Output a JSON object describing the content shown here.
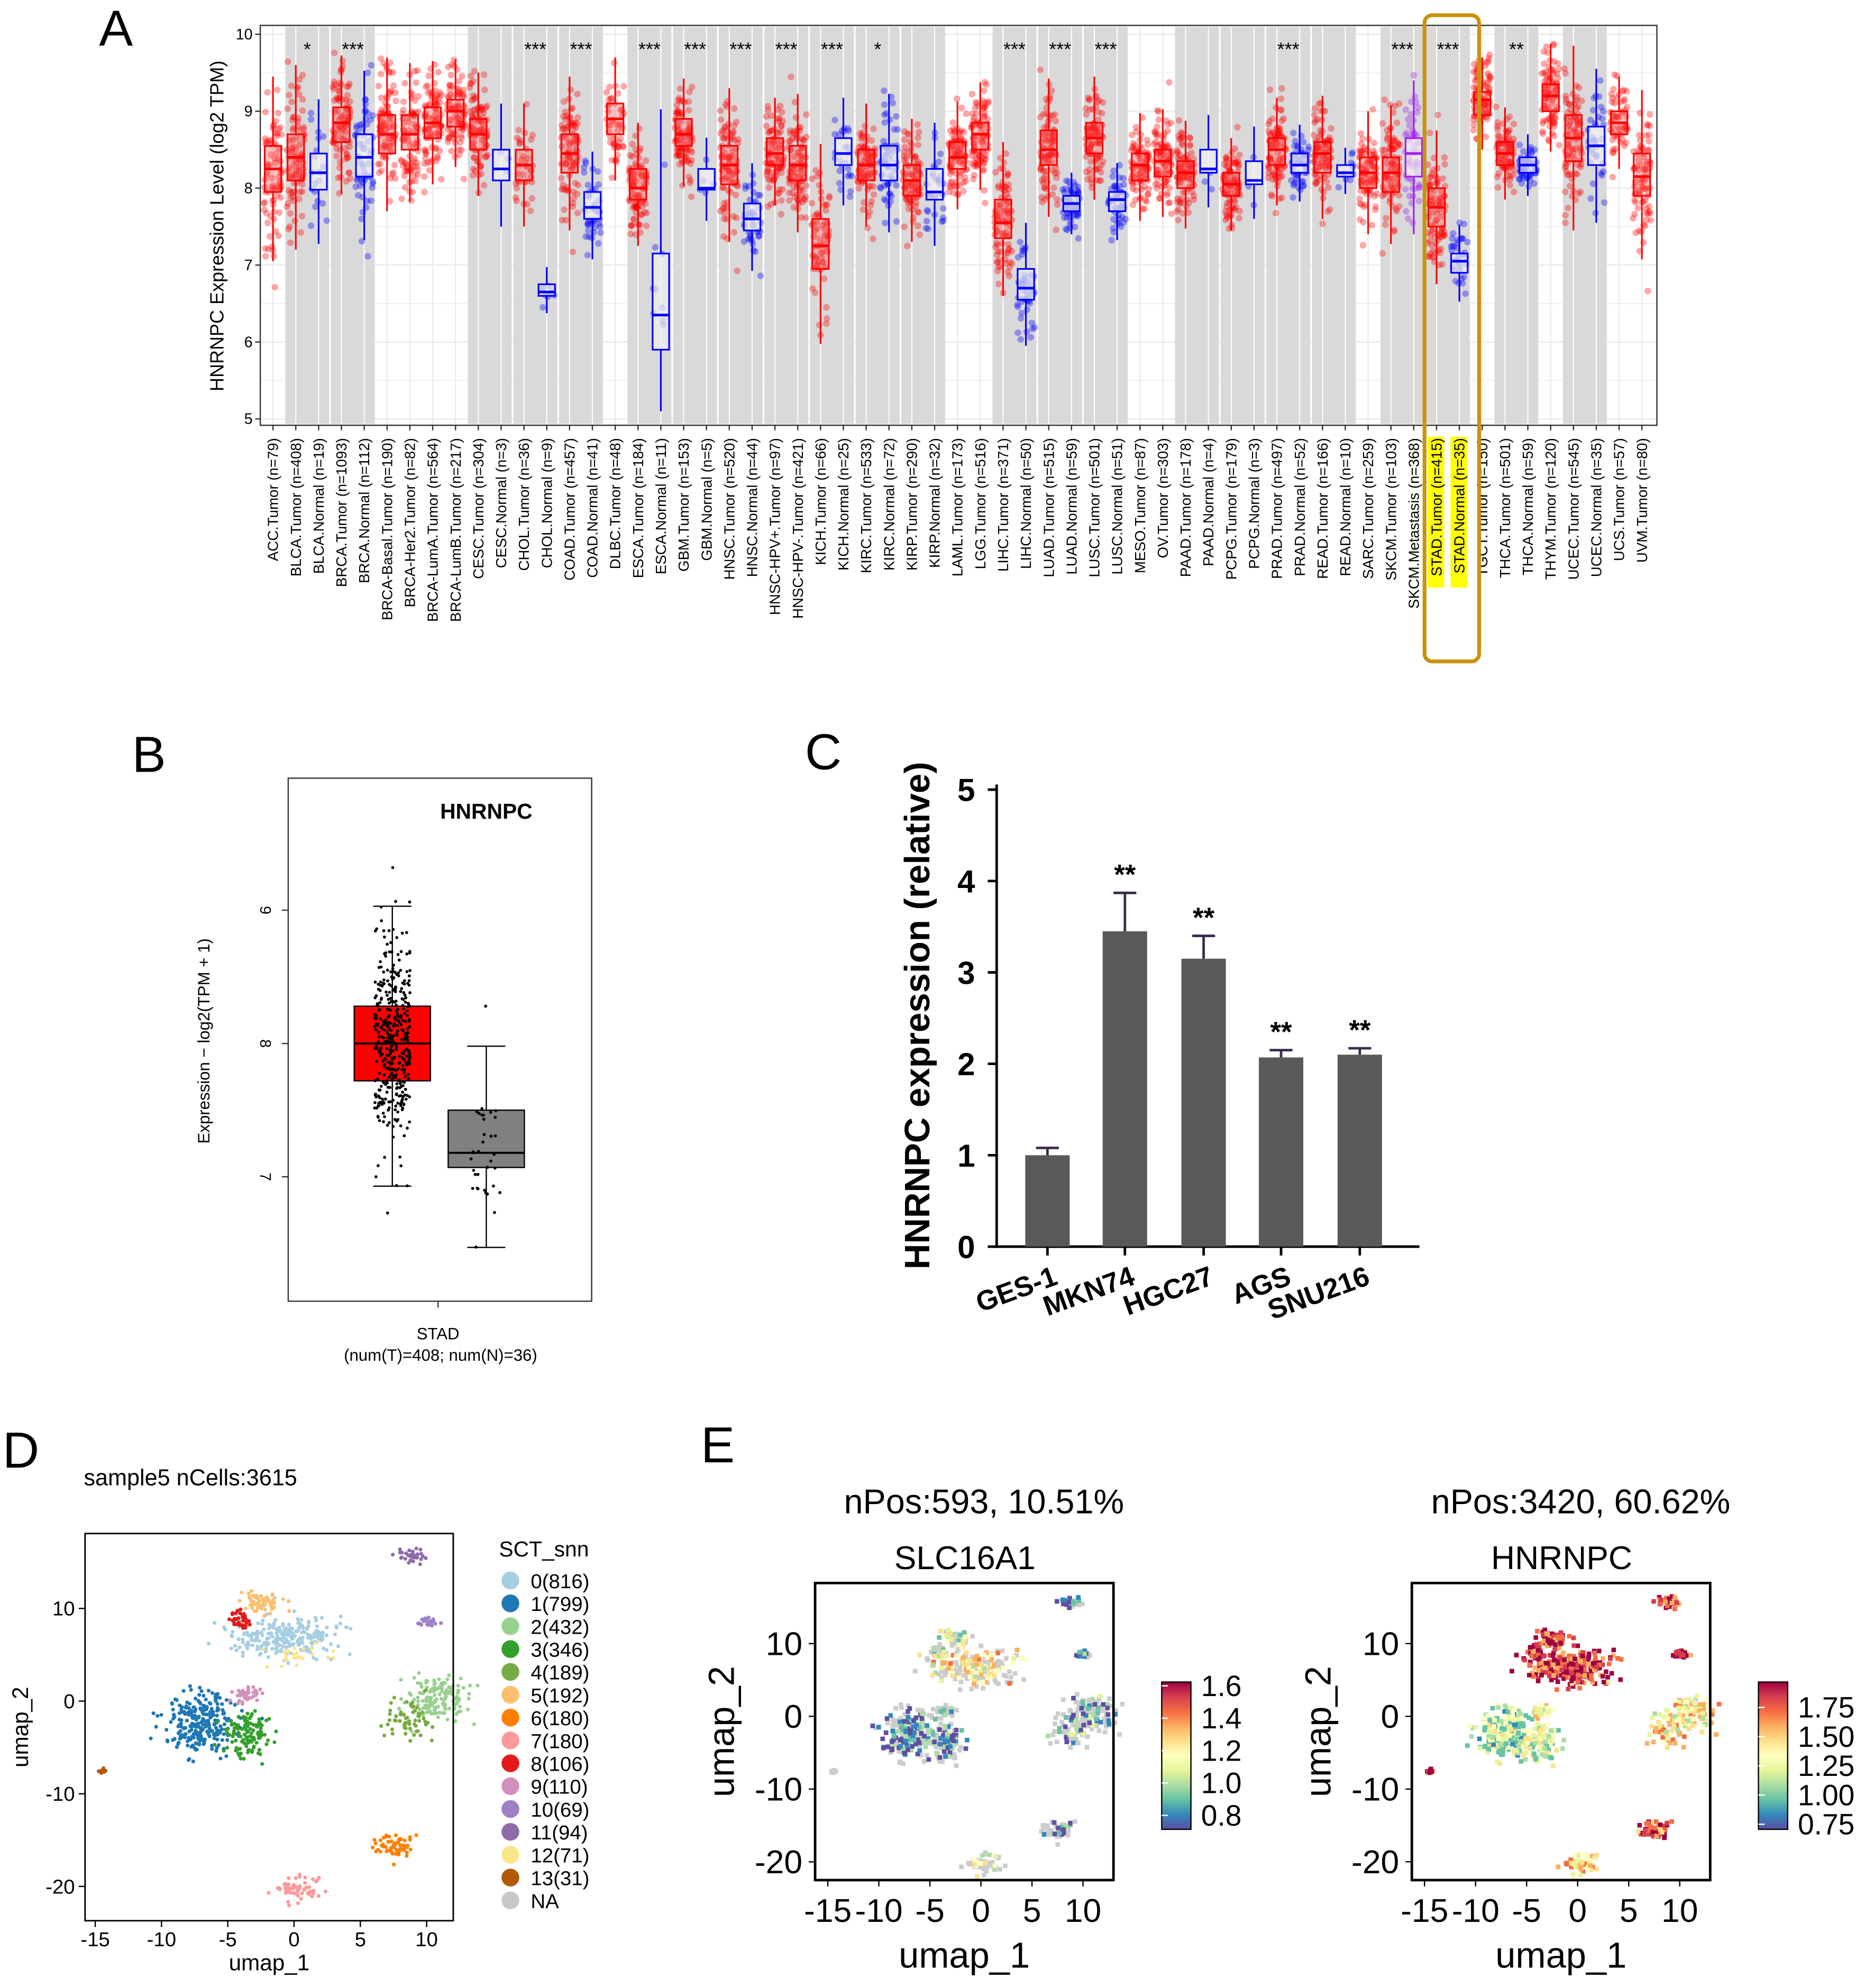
{
  "panel_letters": [
    "A",
    "B",
    "C",
    "D",
    "E"
  ],
  "colors": {
    "tumor": "#ff0000",
    "normal": "#0000ff",
    "metastasis": "#a020f0",
    "band": "#d9d9d9",
    "highlight_box": "#c8930a",
    "highlight_label": "#ffff00",
    "bar": "#595959",
    "error": "#3d2b4f"
  },
  "chart_data": [
    {
      "type": "box",
      "ylabel": "HNRNPC Expression Level (log2 TPM)",
      "ylim": [
        5,
        10
      ],
      "yticks": [
        "5",
        "6",
        "7",
        "8",
        "9",
        "10"
      ],
      "labels": [
        "ACC.Tumor (n=79)",
        "BLCA.Tumor (n=408)",
        "BLCA.Normal (n=19)",
        "BRCA.Tumor (n=1093)",
        "BRCA.Normal (n=112)",
        "BRCA-Basal.Tumor (n=190)",
        "BRCA-Her2.Tumor (n=82)",
        "BRCA-LumA.Tumor (n=564)",
        "BRCA-LumB.Tumor (n=217)",
        "CESC.Tumor (n=304)",
        "CESC.Normal (n=3)",
        "CHOL.Tumor (n=36)",
        "CHOL.Normal (n=9)",
        "COAD.Tumor (n=457)",
        "COAD.Normal (n=41)",
        "DLBC.Tumor (n=48)",
        "ESCA.Tumor (n=184)",
        "ESCA.Normal (n=11)",
        "GBM.Tumor (n=153)",
        "GBM.Normal (n=5)",
        "HNSC.Tumor (n=520)",
        "HNSC.Normal (n=44)",
        "HNSC-HPV+.Tumor (n=97)",
        "HNSC-HPV-.Tumor (n=421)",
        "KICH.Tumor (n=66)",
        "KICH.Normal (n=25)",
        "KIRC.Tumor (n=533)",
        "KIRC.Normal (n=72)",
        "KIRP.Tumor (n=290)",
        "KIRP.Normal (n=32)",
        "LAML.Tumor (n=173)",
        "LGG.Tumor (n=516)",
        "LIHC.Tumor (n=371)",
        "LIHC.Normal (n=50)",
        "LUAD.Tumor (n=515)",
        "LUAD.Normal (n=59)",
        "LUSC.Tumor (n=501)",
        "LUSC.Normal (n=51)",
        "MESO.Tumor (n=87)",
        "OV.Tumor (n=303)",
        "PAAD.Tumor (n=178)",
        "PAAD.Normal (n=4)",
        "PCPG.Tumor (n=179)",
        "PCPG.Normal (n=3)",
        "PRAD.Tumor (n=497)",
        "PRAD.Normal (n=52)",
        "READ.Tumor (n=166)",
        "READ.Normal (n=10)",
        "SARC.Tumor (n=259)",
        "SKCM.Tumor (n=103)",
        "SKCM.Metastasis (n=368)",
        "STAD.Tumor (n=415)",
        "STAD.Normal (n=35)",
        "TGCT.Tumor (n=150)",
        "THCA.Tumor (n=501)",
        "THCA.Normal (n=59)",
        "THYM.Tumor (n=120)",
        "UCEC.Tumor (n=545)",
        "UCEC.Normal (n=35)",
        "UCS.Tumor (n=57)",
        "UVM.Tumor (n=80)"
      ],
      "medians": [
        8.25,
        8.4,
        8.2,
        8.85,
        8.4,
        8.7,
        8.7,
        8.85,
        9.0,
        8.7,
        8.25,
        8.3,
        6.65,
        8.45,
        7.75,
        8.9,
        8.0,
        6.35,
        8.7,
        8.0,
        8.3,
        7.6,
        8.45,
        8.3,
        7.25,
        8.45,
        8.3,
        8.3,
        8.1,
        7.95,
        8.4,
        8.7,
        7.55,
        6.7,
        8.5,
        7.8,
        8.65,
        7.85,
        8.3,
        8.35,
        8.2,
        8.25,
        8.05,
        8.1,
        8.5,
        8.3,
        8.45,
        8.2,
        8.2,
        8.2,
        8.45,
        7.75,
        7.05,
        9.15,
        8.45,
        8.3,
        9.2,
        8.65,
        8.55,
        8.85,
        8.15
      ],
      "q1": [
        7.95,
        8.1,
        7.98,
        8.6,
        8.15,
        8.45,
        8.5,
        8.65,
        8.8,
        8.5,
        8.1,
        8.1,
        6.6,
        8.2,
        7.6,
        8.7,
        7.85,
        5.9,
        8.55,
        7.98,
        8.05,
        7.45,
        8.3,
        8.1,
        6.95,
        8.3,
        8.1,
        8.1,
        7.9,
        7.85,
        8.25,
        8.5,
        7.35,
        6.55,
        8.3,
        7.7,
        8.45,
        7.7,
        8.1,
        8.15,
        8.0,
        8.2,
        7.9,
        8.05,
        8.3,
        8.2,
        8.2,
        8.15,
        8.0,
        7.95,
        8.15,
        7.5,
        6.9,
        8.95,
        8.3,
        8.2,
        9.0,
        8.35,
        8.3,
        8.7,
        7.9
      ],
      "q3": [
        8.55,
        8.7,
        8.45,
        9.05,
        8.7,
        8.95,
        8.95,
        9.05,
        9.15,
        8.9,
        8.5,
        8.5,
        6.75,
        8.7,
        7.95,
        9.1,
        8.25,
        7.15,
        8.9,
        8.25,
        8.55,
        7.8,
        8.65,
        8.55,
        7.6,
        8.65,
        8.5,
        8.55,
        8.3,
        8.25,
        8.6,
        8.85,
        7.85,
        6.95,
        8.75,
        7.9,
        8.85,
        7.95,
        8.45,
        8.5,
        8.35,
        8.5,
        8.2,
        8.35,
        8.65,
        8.45,
        8.6,
        8.3,
        8.4,
        8.4,
        8.65,
        8.0,
        7.15,
        9.25,
        8.6,
        8.4,
        9.35,
        8.95,
        8.8,
        9.0,
        8.45
      ],
      "comparisons": [
        {
          "first": 1,
          "stars": "*"
        },
        {
          "first": 3,
          "stars": "***"
        },
        {
          "first": 9,
          "stars": ""
        },
        {
          "first": 11,
          "stars": "***"
        },
        {
          "first": 13,
          "stars": "***"
        },
        {
          "first": 16,
          "stars": "***"
        },
        {
          "first": 18,
          "stars": "***"
        },
        {
          "first": 20,
          "stars": "***"
        },
        {
          "first": 22,
          "stars": "***"
        },
        {
          "first": 24,
          "stars": "***"
        },
        {
          "first": 26,
          "stars": "*"
        },
        {
          "first": 28,
          "stars": ""
        },
        {
          "first": 32,
          "stars": "***"
        },
        {
          "first": 34,
          "stars": "***"
        },
        {
          "first": 36,
          "stars": "***"
        },
        {
          "first": 40,
          "stars": ""
        },
        {
          "first": 42,
          "stars": ""
        },
        {
          "first": 44,
          "stars": "***"
        },
        {
          "first": 46,
          "stars": ""
        },
        {
          "first": 49,
          "stars": "***"
        },
        {
          "first": 51,
          "stars": "***"
        },
        {
          "first": 54,
          "stars": "**"
        },
        {
          "first": 57,
          "stars": ""
        }
      ],
      "highlight": [
        51,
        52
      ]
    },
    {
      "type": "box",
      "title": "HNRNPC",
      "ylabel": "Expression − log2(TPM + 1)",
      "yticks": [
        "7",
        "8",
        "9"
      ],
      "xlabel": "STAD",
      "xsub": "(num(T)=408; num(N)=36)",
      "tumor": {
        "n": 408,
        "min": 6.93,
        "q1": 7.72,
        "median": 8.0,
        "q3": 8.28,
        "max": 9.03
      },
      "normal": {
        "n": 36,
        "min": 6.47,
        "q1": 7.07,
        "median": 7.18,
        "q3": 7.5,
        "max": 7.98
      }
    },
    {
      "type": "bar",
      "ylabel": "HNRNPC expression (relative)",
      "ylim": [
        0,
        5
      ],
      "yticks": [
        "0",
        "1",
        "2",
        "3",
        "4",
        "5"
      ],
      "categories": [
        "GES-1",
        "MKN74",
        "HGC27",
        "AGS",
        "SNU216"
      ],
      "values": [
        1.0,
        3.45,
        3.15,
        2.07,
        2.1
      ],
      "errors": [
        0.08,
        0.42,
        0.25,
        0.08,
        0.07
      ],
      "annotations": [
        "",
        "**",
        "**",
        "**",
        "**"
      ]
    },
    {
      "type": "scatter",
      "title": "sample5 nCells:3615",
      "xlabel": "umap_1",
      "ylabel": "umap_2",
      "xticks": [
        "-15",
        "-10",
        "-5",
        "0",
        "5",
        "10"
      ],
      "yticks": [
        "-20",
        "-10",
        "0",
        "10"
      ],
      "legend_title": "SCT_snn",
      "legend_na": "NA",
      "na_color": "#c8c8c8",
      "clusters": [
        {
          "label": "0(816)",
          "count": 816,
          "color": "#a6cee3",
          "center": [
            -0.5,
            7
          ],
          "spread": [
            2.2,
            1.1
          ]
        },
        {
          "label": "1(799)",
          "count": 799,
          "color": "#1f78b4",
          "center": [
            -7,
            -2.5
          ],
          "spread": [
            1.4,
            1.7
          ]
        },
        {
          "label": "2(432)",
          "count": 432,
          "color": "#98d18f",
          "center": [
            10.8,
            0.2
          ],
          "spread": [
            1.2,
            1.2
          ]
        },
        {
          "label": "3(346)",
          "count": 346,
          "color": "#33a02c",
          "center": [
            -3.6,
            -3.6
          ],
          "spread": [
            0.9,
            1.1
          ]
        },
        {
          "label": "4(189)",
          "count": 189,
          "color": "#77ab43",
          "center": [
            8.8,
            -2
          ],
          "spread": [
            0.9,
            1.1
          ]
        },
        {
          "label": "5(192)",
          "count": 192,
          "color": "#fdbf6f",
          "center": [
            -2.5,
            10.6
          ],
          "spread": [
            0.8,
            0.6
          ]
        },
        {
          "label": "6(180)",
          "count": 180,
          "color": "#ff7f00",
          "center": [
            7.6,
            -15.6
          ],
          "spread": [
            0.9,
            0.6
          ]
        },
        {
          "label": "7(180)",
          "count": 180,
          "color": "#fb9a99",
          "center": [
            0.2,
            -20.3
          ],
          "spread": [
            0.9,
            0.6
          ]
        },
        {
          "label": "8(106)",
          "count": 106,
          "color": "#e31a1c",
          "center": [
            -4.2,
            8.8
          ],
          "spread": [
            0.5,
            0.6
          ]
        },
        {
          "label": "9(110)",
          "count": 110,
          "color": "#d291bc",
          "center": [
            -3.5,
            0.8
          ],
          "spread": [
            0.6,
            0.6
          ]
        },
        {
          "label": "10(69)",
          "count": 69,
          "color": "#9e80c6",
          "center": [
            10,
            8.5
          ],
          "spread": [
            0.5,
            0.3
          ]
        },
        {
          "label": "11(94)",
          "count": 94,
          "color": "#8e6bab",
          "center": [
            8.8,
            15.6
          ],
          "spread": [
            0.6,
            0.4
          ]
        },
        {
          "label": "12(71)",
          "count": 71,
          "color": "#fbe58a",
          "center": [
            0.8,
            5
          ],
          "spread": [
            1.5,
            0.7
          ]
        },
        {
          "label": "13(31)",
          "count": 31,
          "color": "#b35806",
          "center": [
            -14.5,
            -7.5
          ],
          "spread": [
            0.2,
            0.2
          ]
        }
      ]
    },
    {
      "type": "scatter",
      "title": "nPos:593, 10.51%",
      "gene": "SLC16A1",
      "xlabel": "umap_1",
      "ylabel": "umap_2",
      "xticks": [
        "-15",
        "-10",
        "-5",
        "0",
        "5",
        "10"
      ],
      "yticks": [
        "-20",
        "-10",
        "0",
        "10"
      ],
      "colorbar_range": [
        0.8,
        1.6
      ],
      "colorbar_ticks": [
        "0.8",
        "1.0",
        "1.2",
        "1.4",
        "1.6"
      ]
    },
    {
      "type": "scatter",
      "title": "nPos:3420, 60.62%",
      "gene": "HNRNPC",
      "xlabel": "umap_1",
      "ylabel": "umap_2",
      "xticks": [
        "-15",
        "-10",
        "-5",
        "0",
        "5",
        "10"
      ],
      "yticks": [
        "-20",
        "-10",
        "0",
        "10"
      ],
      "colorbar_range": [
        0.75,
        1.75
      ],
      "colorbar_ticks": [
        "0.75",
        "1.00",
        "1.25",
        "1.50",
        "1.75"
      ]
    }
  ]
}
